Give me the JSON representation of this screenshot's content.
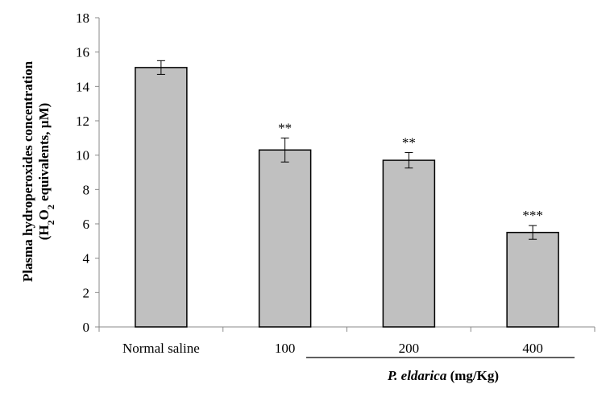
{
  "chart_data": {
    "type": "bar",
    "categories": [
      "Normal saline",
      "100",
      "200",
      "400"
    ],
    "values": [
      15.1,
      10.3,
      9.7,
      5.5
    ],
    "error": [
      0.4,
      0.7,
      0.45,
      0.4
    ],
    "significance": [
      "",
      "**",
      "**",
      "***"
    ],
    "ylabel_line1": "Plasma hydroperoxides  concentration",
    "ylabel_line2_prefix": "(H",
    "ylabel_sub1": "2",
    "ylabel_mid": "O",
    "ylabel_sub2": "2",
    "ylabel_suffix": "  equivalents, µM)",
    "xlabel_italic": "P. eldarica",
    "xlabel_rest": " (mg/Kg)",
    "ylim": [
      0,
      18
    ],
    "yticks": [
      0,
      2,
      4,
      6,
      8,
      10,
      12,
      14,
      16,
      18
    ],
    "bar_color": "#c0c0c0",
    "grid": false,
    "legend": "none"
  }
}
